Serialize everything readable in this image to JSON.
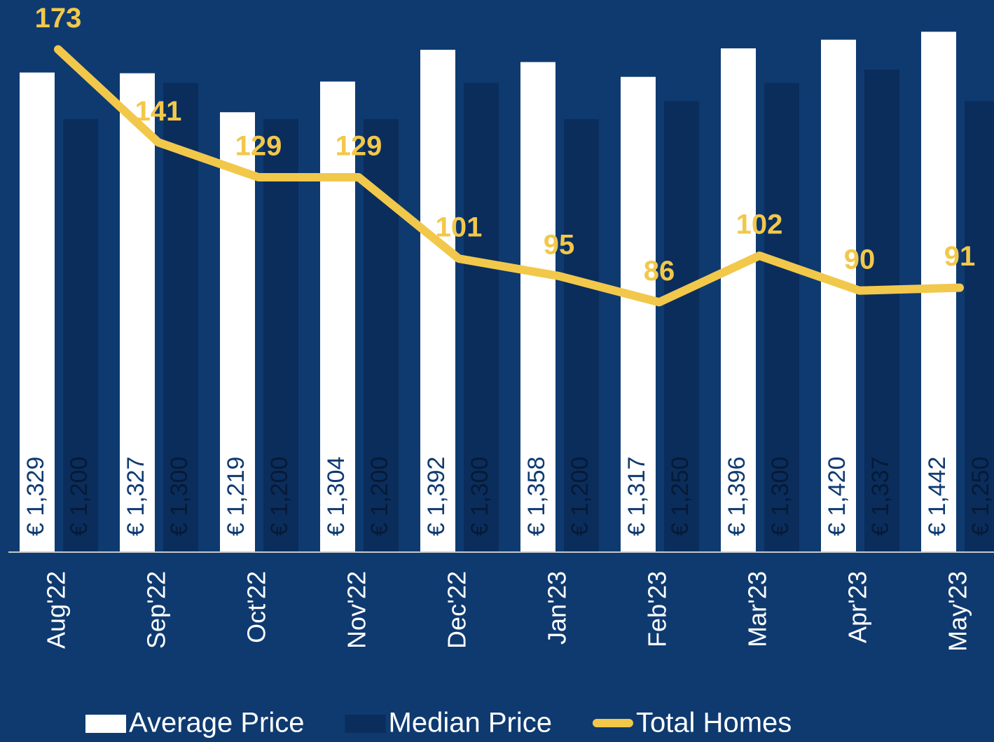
{
  "chart_data": {
    "type": "bar",
    "categories": [
      "Aug'22",
      "Sep'22",
      "Oct'22",
      "Nov'22",
      "Dec'22",
      "Jan'23",
      "Feb'23",
      "Mar'23",
      "Apr'23",
      "May'23"
    ],
    "series": [
      {
        "name": "Average Price",
        "type": "bar",
        "color": "#ffffff",
        "label_color": "#0e3a70",
        "values": [
          1329,
          1327,
          1219,
          1304,
          1392,
          1358,
          1317,
          1396,
          1420,
          1442
        ],
        "value_labels": [
          "€ 1,329",
          "€ 1,327",
          "€ 1,219",
          "€ 1,304",
          "€ 1,392",
          "€ 1,358",
          "€ 1,317",
          "€ 1,396",
          "€ 1,420",
          "€ 1,442"
        ]
      },
      {
        "name": "Median Price",
        "type": "bar",
        "color": "#0b2d5c",
        "label_color": "#061a36",
        "values": [
          1200,
          1300,
          1200,
          1200,
          1300,
          1200,
          1250,
          1300,
          1337,
          1250
        ],
        "value_labels": [
          "€ 1,200",
          "€ 1,300",
          "€ 1,200",
          "€ 1,200",
          "€ 1,300",
          "€ 1,200",
          "€ 1,250",
          "€ 1,300",
          "€ 1,337",
          "€ 1,250"
        ]
      },
      {
        "name": "Total Homes",
        "type": "line",
        "axis": "y2",
        "color": "#f2c84b",
        "values": [
          173,
          141,
          129,
          129,
          101,
          95,
          86,
          102,
          90,
          91
        ]
      }
    ],
    "ylim": [
      0,
      1530
    ],
    "y2lim": [
      0,
      190
    ],
    "grid": false
  }
}
